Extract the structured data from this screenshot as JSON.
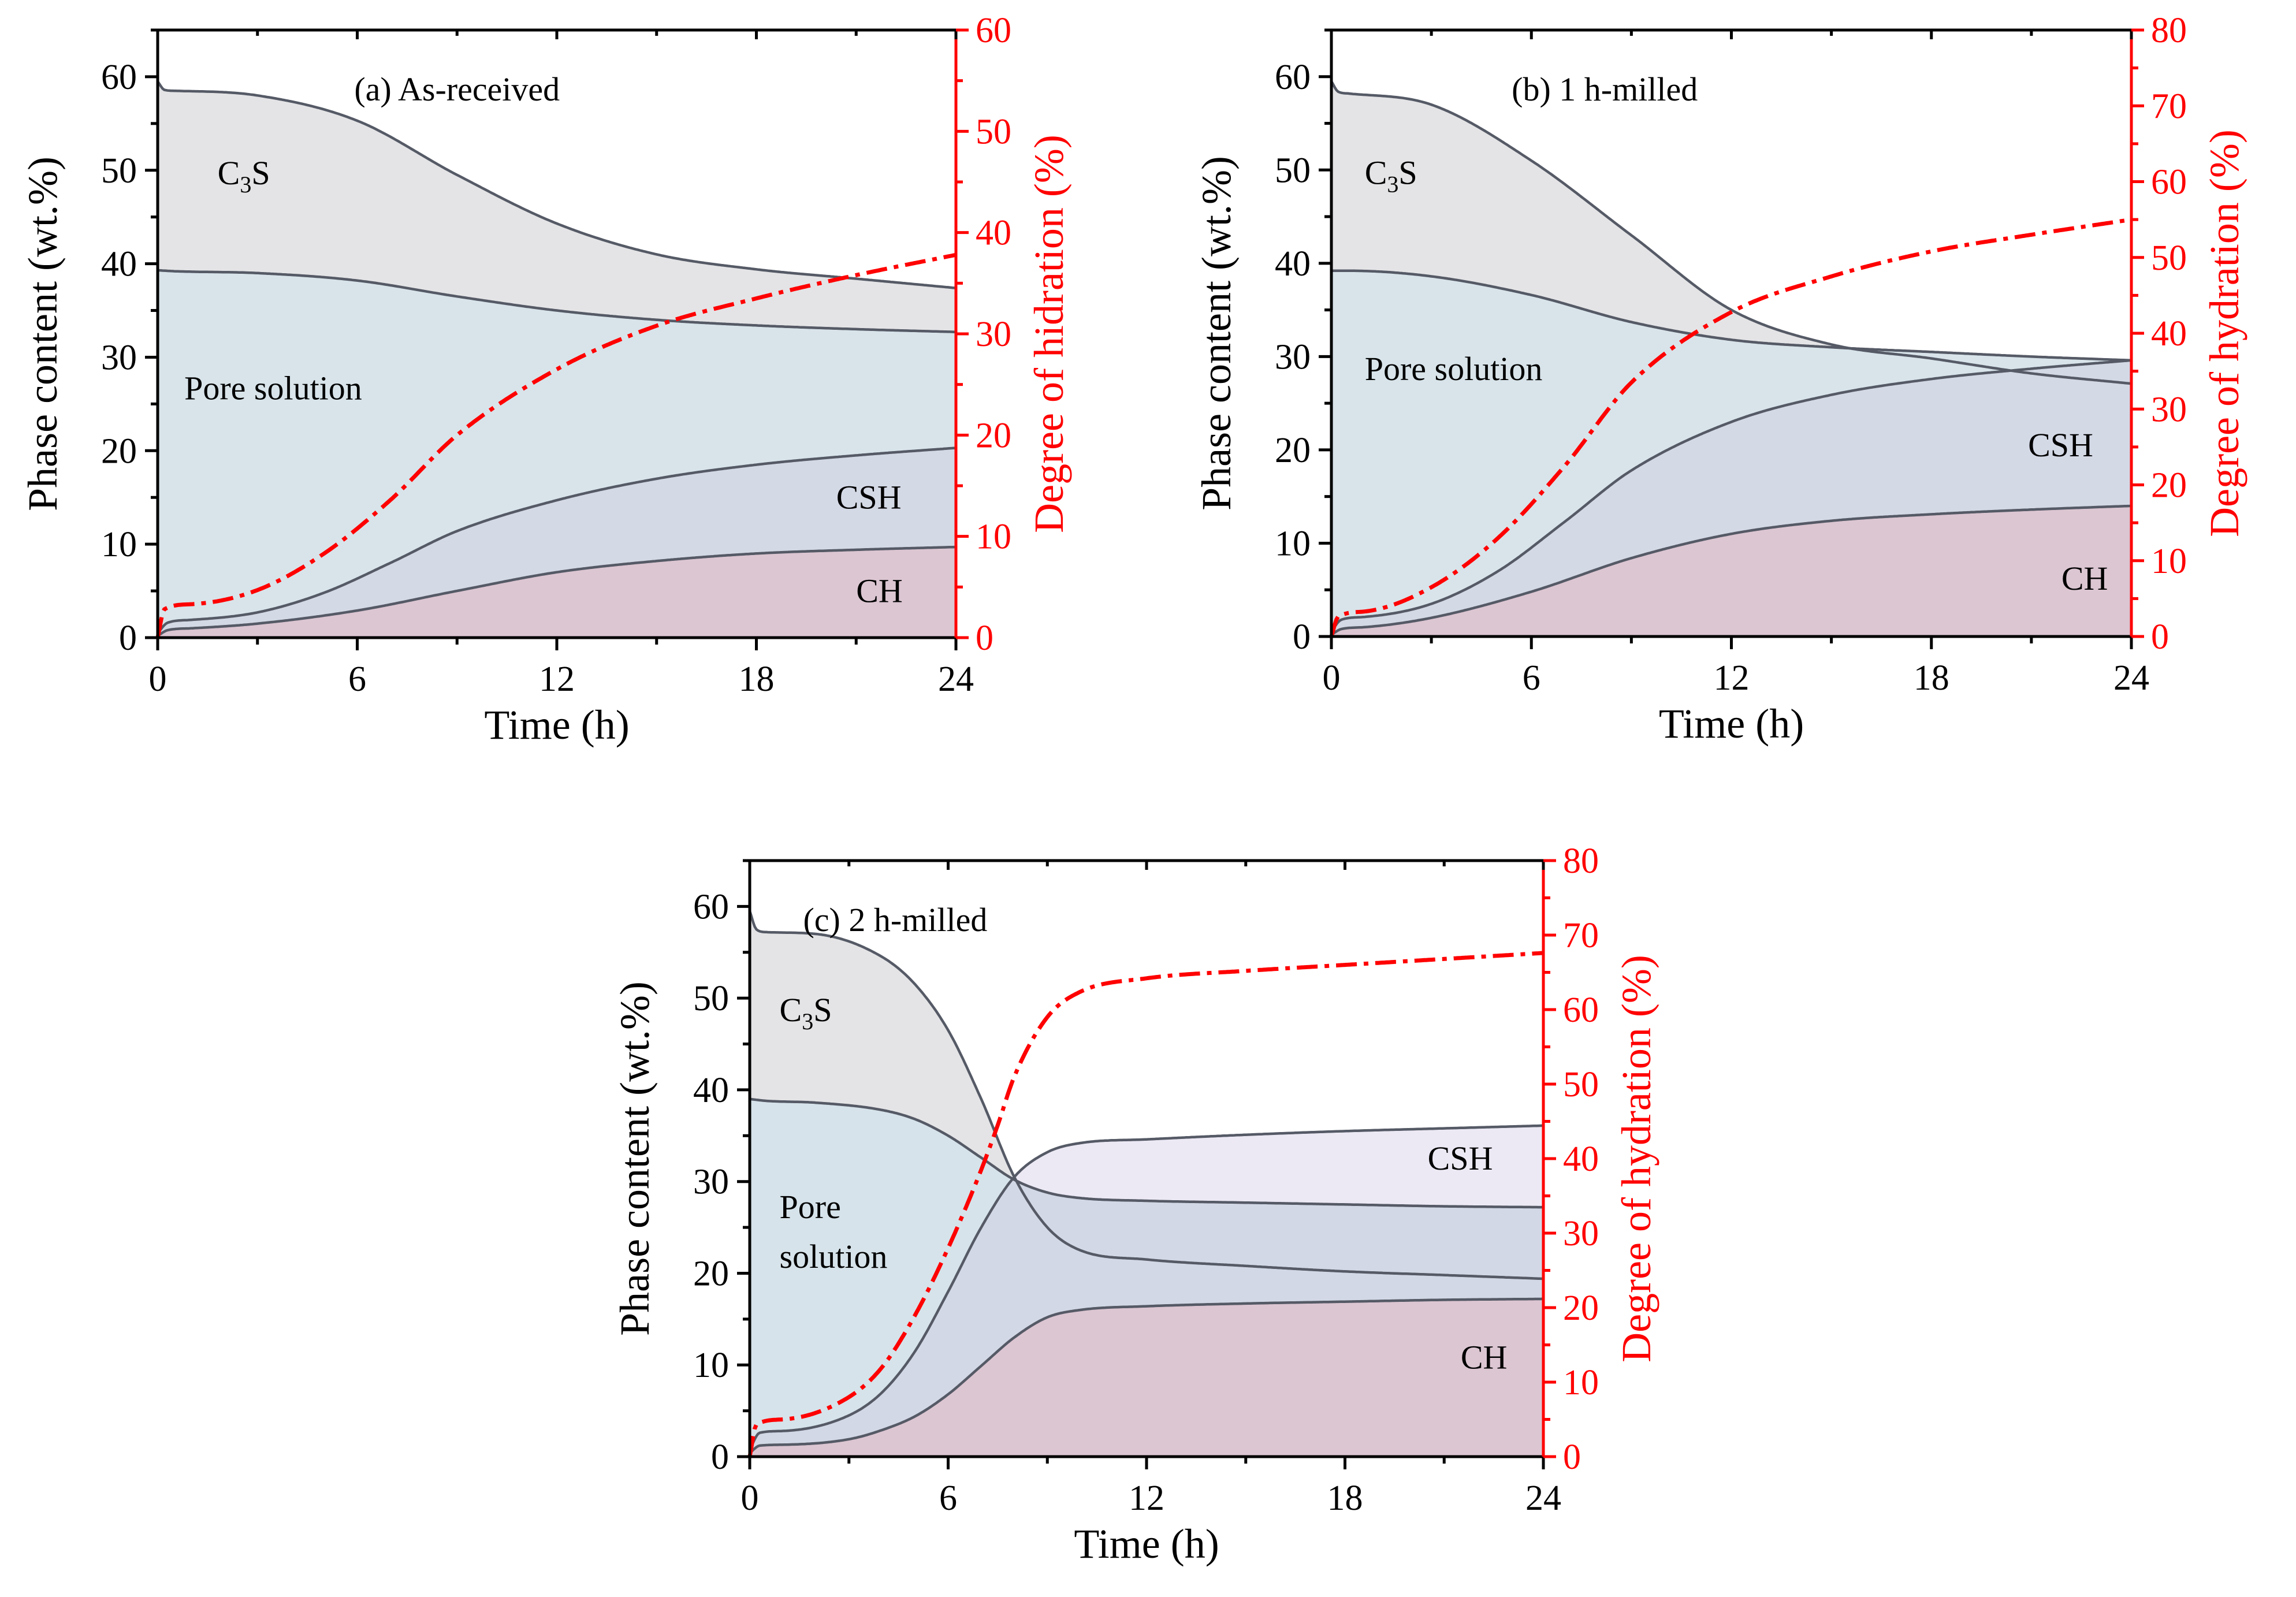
{
  "colors": {
    "c3s": "#e4e4e6",
    "pore_a": "#d8e4ea",
    "pore_b": "#d8e4ea",
    "pore_c": "#d6e3ea",
    "csh_a": "#d4d9e6",
    "csh_c": "#ece9f4",
    "ch": "#dcc6d2",
    "mid_c": "#e2e7f3",
    "lower_c": "#d3d8e6",
    "boundary": "#555a66",
    "doh": "#ff0000"
  },
  "chart_data": [
    {
      "id": "a",
      "type": "area",
      "title": "(a) As-received",
      "xlabel": "Time (h)",
      "ylabel": "Phase content (wt.%)",
      "y2label": "Degree of hidration (%)",
      "xlim": [
        0,
        24
      ],
      "ylim": [
        0,
        65
      ],
      "y2lim": [
        0,
        60
      ],
      "xticks": [
        0,
        6,
        12,
        18,
        24
      ],
      "yticks": [
        0,
        10,
        20,
        30,
        40,
        50,
        60
      ],
      "y2ticks": [
        0,
        10,
        20,
        30,
        40,
        50,
        60
      ],
      "region_labels": [
        {
          "parts": [
            "C",
            "3",
            "S"
          ],
          "x": 1.8,
          "y": 48.5
        },
        {
          "parts": [
            "Pore solution"
          ],
          "x": 0.8,
          "y": 25.5
        },
        {
          "parts": [
            "CSH"
          ],
          "x": 20.4,
          "y": 13.8
        },
        {
          "parts": [
            "CH"
          ],
          "x": 21.0,
          "y": 3.8
        }
      ],
      "series": [
        {
          "name": "C3S",
          "x": [
            0,
            0.2,
            0.5,
            3,
            6,
            9,
            12,
            15,
            18,
            21,
            24
          ],
          "values": [
            59.5,
            58.6,
            58.5,
            58.0,
            55.3,
            49.5,
            44.3,
            41.0,
            39.4,
            38.4,
            37.4
          ]
        },
        {
          "name": "Pore solution",
          "x": [
            0,
            0.5,
            3,
            6,
            9,
            12,
            15,
            18,
            21,
            24
          ],
          "values": [
            39.3,
            39.2,
            39.0,
            38.2,
            36.5,
            35.0,
            34.0,
            33.4,
            33.0,
            32.7
          ]
        },
        {
          "name": "CSH",
          "x": [
            0,
            0.3,
            1,
            3,
            5,
            7,
            9,
            12,
            15,
            18,
            21,
            24
          ],
          "values": [
            0.5,
            1.6,
            1.9,
            2.7,
            4.8,
            8.0,
            11.4,
            14.7,
            17.0,
            18.5,
            19.5,
            20.3
          ]
        },
        {
          "name": "CH",
          "x": [
            0,
            0.3,
            1,
            3,
            6,
            9,
            12,
            15,
            18,
            21,
            24
          ],
          "values": [
            0.2,
            0.8,
            1.0,
            1.5,
            2.9,
            5.0,
            7.0,
            8.2,
            9.0,
            9.4,
            9.7
          ]
        },
        {
          "name": "Degree of hydration",
          "axis": "right",
          "x": [
            0,
            0.2,
            1,
            3,
            5,
            7,
            9,
            12,
            15,
            18,
            21,
            24
          ],
          "values": [
            0,
            2.8,
            3.3,
            4.7,
            8.3,
            13.6,
            20.0,
            26.5,
            30.8,
            33.5,
            35.8,
            37.8
          ]
        }
      ]
    },
    {
      "id": "b",
      "type": "area",
      "title": "(b) 1 h-milled",
      "xlabel": "Time (h)",
      "ylabel": "Phase content (wt.%)",
      "y2label": "Degree of hydration (%)",
      "xlim": [
        0,
        24
      ],
      "ylim": [
        0,
        65
      ],
      "y2lim": [
        0,
        80
      ],
      "xticks": [
        0,
        6,
        12,
        18,
        24
      ],
      "yticks": [
        0,
        10,
        20,
        30,
        40,
        50,
        60
      ],
      "y2ticks": [
        0,
        10,
        20,
        30,
        40,
        50,
        60,
        70,
        80
      ],
      "region_labels": [
        {
          "parts": [
            "C",
            "3",
            "S"
          ],
          "x": 1.0,
          "y": 48.5
        },
        {
          "parts": [
            "Pore solution"
          ],
          "x": 1.0,
          "y": 27.5
        },
        {
          "parts": [
            "CSH"
          ],
          "x": 20.9,
          "y": 19.3
        },
        {
          "parts": [
            "CH"
          ],
          "x": 21.9,
          "y": 5.0
        }
      ],
      "series": [
        {
          "name": "C3S",
          "x": [
            0,
            0.2,
            0.5,
            3,
            6,
            9,
            12,
            15,
            18,
            21,
            24
          ],
          "values": [
            59.5,
            58.4,
            58.2,
            57.0,
            51.0,
            43.0,
            35.0,
            31.3,
            29.8,
            28.2,
            27.1
          ]
        },
        {
          "name": "Pore solution",
          "x": [
            0,
            0.5,
            3,
            6,
            9,
            12,
            15,
            18,
            21,
            24
          ],
          "values": [
            39.2,
            39.2,
            38.6,
            36.6,
            33.7,
            31.8,
            31.0,
            30.5,
            30.0,
            29.6
          ]
        },
        {
          "name": "CSH",
          "x": [
            0,
            0.3,
            1,
            3,
            5,
            7,
            9,
            12,
            15,
            18,
            21,
            24
          ],
          "values": [
            0.6,
            1.8,
            2.1,
            3.5,
            7.0,
            12.3,
            17.8,
            23.0,
            25.9,
            27.6,
            28.7,
            29.6
          ]
        },
        {
          "name": "CH",
          "x": [
            0,
            0.3,
            1,
            3,
            6,
            9,
            12,
            15,
            18,
            21,
            24
          ],
          "values": [
            0.2,
            0.8,
            1.0,
            2.0,
            4.8,
            8.4,
            11.0,
            12.4,
            13.1,
            13.6,
            14.0
          ]
        },
        {
          "name": "Degree of hydration",
          "axis": "right",
          "x": [
            0,
            0.2,
            1,
            3,
            5,
            7,
            9,
            12,
            15,
            18,
            21,
            24
          ],
          "values": [
            0,
            2.6,
            3.3,
            6.5,
            13.0,
            22.5,
            33.5,
            42.8,
            47.5,
            50.8,
            53.0,
            55.0
          ]
        }
      ]
    },
    {
      "id": "c",
      "type": "area",
      "title": "(c) 2 h-milled",
      "xlabel": "Time (h)",
      "ylabel": "Phase content (wt.%)",
      "y2label": "Degree of hydration (%)",
      "xlim": [
        0,
        24
      ],
      "ylim": [
        0,
        65
      ],
      "y2lim": [
        0,
        80
      ],
      "xticks": [
        0,
        6,
        12,
        18,
        24
      ],
      "yticks": [
        0,
        10,
        20,
        30,
        40,
        50,
        60
      ],
      "y2ticks": [
        0,
        10,
        20,
        30,
        40,
        50,
        60,
        70,
        80
      ],
      "region_labels": [
        {
          "parts": [
            "C",
            "3",
            "S"
          ],
          "x": 0.9,
          "y": 47.5
        },
        {
          "parts": [
            "Pore"
          ],
          "x": 0.9,
          "y": 26.0
        },
        {
          "parts": [
            "solution"
          ],
          "x": 0.9,
          "y": 20.6
        },
        {
          "parts": [
            "CSH"
          ],
          "x": 20.5,
          "y": 31.3
        },
        {
          "parts": [
            "CH"
          ],
          "x": 21.5,
          "y": 9.6
        }
      ],
      "series": [
        {
          "name": "C3S",
          "x": [
            0,
            0.2,
            0.5,
            2,
            4,
            5,
            6,
            7,
            8,
            9,
            10,
            12,
            15,
            18,
            21,
            24
          ],
          "values": [
            59.5,
            57.5,
            57.2,
            57.0,
            54.5,
            51.5,
            46.5,
            39.0,
            30.5,
            25.0,
            22.5,
            21.5,
            20.8,
            20.2,
            19.8,
            19.4
          ]
        },
        {
          "name": "Pore solution",
          "x": [
            0,
            0.5,
            2,
            4,
            5,
            6,
            7,
            8,
            9,
            10,
            12,
            15,
            18,
            21,
            24
          ],
          "values": [
            39.0,
            38.8,
            38.6,
            37.8,
            36.8,
            35.0,
            32.6,
            30.2,
            28.8,
            28.2,
            27.9,
            27.7,
            27.5,
            27.3,
            27.2
          ]
        },
        {
          "name": "CSH",
          "x": [
            0,
            0.3,
            1,
            3,
            4,
            5,
            6,
            7,
            8,
            9,
            10,
            12,
            15,
            18,
            21,
            24
          ],
          "values": [
            0.8,
            2.6,
            2.8,
            4.5,
            7.0,
            11.5,
            18.0,
            25.0,
            30.5,
            33.2,
            34.2,
            34.6,
            35.1,
            35.5,
            35.8,
            36.1
          ]
        },
        {
          "name": "CH",
          "x": [
            0,
            0.3,
            1,
            3,
            4,
            5,
            6,
            7,
            8,
            9,
            10,
            12,
            15,
            18,
            21,
            24
          ],
          "values": [
            0.4,
            1.2,
            1.3,
            1.9,
            2.9,
            4.4,
            6.8,
            9.9,
            13.0,
            15.2,
            16.0,
            16.4,
            16.7,
            16.9,
            17.1,
            17.2
          ]
        },
        {
          "name": "Degree of hydration",
          "axis": "right",
          "x": [
            0,
            0.2,
            1,
            3,
            4,
            5,
            6,
            7,
            7.5,
            8,
            9,
            10,
            12,
            15,
            18,
            21,
            24
          ],
          "values": [
            0,
            4.3,
            5.0,
            8.0,
            12.0,
            19.0,
            28.0,
            38.5,
            44.5,
            51.0,
            59.0,
            62.4,
            64.2,
            65.2,
            66.0,
            66.8,
            67.6
          ]
        }
      ]
    }
  ]
}
